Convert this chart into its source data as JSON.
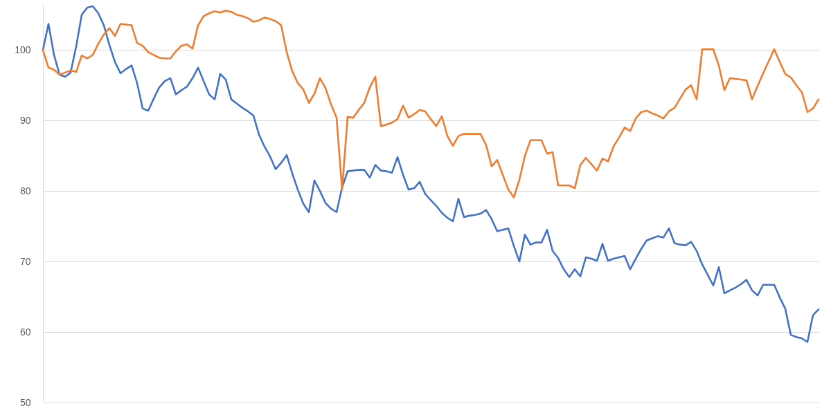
{
  "chart_data": {
    "type": "line",
    "categories": [
      null,
      null,
      null,
      null,
      null,
      null,
      null,
      null,
      null,
      null,
      null,
      null,
      null,
      null,
      null,
      null,
      null,
      null,
      null,
      null,
      null,
      null,
      null,
      null,
      null,
      null,
      null,
      null,
      null,
      null,
      null,
      null,
      null,
      null,
      null,
      null,
      null,
      null,
      null,
      null,
      null,
      null,
      null,
      null,
      null,
      null,
      null,
      null,
      null,
      null,
      null,
      null,
      null,
      null,
      null,
      null,
      null,
      null,
      null,
      null,
      null,
      null,
      null,
      null,
      null,
      null,
      null,
      null,
      null,
      null,
      null,
      null,
      null,
      null,
      null,
      null,
      null,
      null,
      null,
      null,
      null,
      null,
      null,
      null,
      null,
      null,
      null,
      null,
      null,
      null,
      null,
      null,
      null,
      null,
      null,
      null,
      null,
      null,
      null,
      null,
      null,
      null,
      null,
      null,
      null,
      null,
      null,
      null,
      null,
      null,
      null,
      null,
      null,
      null,
      null,
      null,
      null,
      null,
      null,
      null,
      null,
      null,
      null,
      null,
      null,
      null,
      null,
      null,
      null,
      null,
      null,
      null,
      null,
      null,
      null,
      null,
      null,
      null,
      null,
      null,
      null
    ],
    "series": [
      {
        "color": "#4472c4",
        "values": [
          100,
          103.7,
          99.3,
          96.5,
          96.2,
          96.8,
          100.5,
          105.0,
          106.0,
          106.2,
          105.2,
          103.5,
          100.7,
          98.3,
          96.7,
          97.3,
          97.8,
          95.3,
          91.7,
          91.4,
          93.1,
          94.7,
          95.6,
          96.0,
          93.7,
          94.3,
          94.8,
          96,
          97.5,
          95.6,
          93.7,
          93,
          96.6,
          95.8,
          93,
          92.4,
          91.8,
          91.3,
          90.7,
          88,
          86.3,
          84.9,
          83.1,
          84,
          85.1,
          82.5,
          80.2,
          78.2,
          77,
          81.5,
          80,
          78.3,
          77.5,
          77,
          80.5,
          82.8,
          82.9,
          83,
          83,
          81.9,
          83.7,
          82.9,
          82.8,
          82.6,
          84.8,
          82.3,
          80.2,
          80.4,
          81.3,
          79.6,
          78.7,
          77.9,
          76.9,
          76.2,
          75.7,
          78.9,
          76.3,
          76.5,
          76.6,
          76.8,
          77.3,
          76,
          74.3,
          74.5,
          74.7,
          72.2,
          70,
          73.8,
          72.4,
          72.7,
          72.7,
          74.5,
          71.5,
          70.5,
          68.9,
          67.8,
          68.9,
          67.9,
          70.6,
          70.4,
          70.1,
          72.5,
          70.1,
          70.4,
          70.6,
          70.8,
          68.9,
          70.4,
          71.8,
          73,
          73.3,
          73.6,
          73.4,
          74.7,
          72.6,
          72.4,
          72.3,
          72.8,
          71.5,
          69.6,
          68.1,
          66.6,
          69.2,
          65.5,
          65.9,
          66.3,
          66.8,
          67.4,
          65.9,
          65.2,
          66.7,
          66.7,
          66.7,
          64.9,
          63.3,
          59.6,
          59.3,
          59.1,
          58.6,
          62.4,
          63.2
        ]
      },
      {
        "color": "#ed7d31",
        "values": [
          100,
          97.5,
          97.2,
          96.5,
          96.8,
          97.1,
          96.9,
          99.2,
          98.8,
          99.3,
          100.9,
          102.2,
          103.1,
          102.0,
          103.7,
          103.6,
          103.5,
          101,
          100.6,
          99.7,
          99.3,
          98.9,
          98.8,
          98.8,
          99.8,
          100.6,
          100.8,
          100.2,
          103.5,
          104.8,
          105.2,
          105.5,
          105.3,
          105.6,
          105.4,
          105.0,
          104.8,
          104.5,
          104.0,
          104.2,
          104.6,
          104.4,
          104.1,
          103.5,
          99.7,
          97,
          95.3,
          94.4,
          92.5,
          93.8,
          96,
          94.6,
          92.3,
          90.4,
          80.2,
          90.5,
          90.4,
          91.5,
          92.5,
          94.7,
          96.2,
          89.2,
          89.4,
          89.7,
          90.2,
          92.1,
          90.4,
          90.9,
          91.5,
          91.3,
          90.2,
          89.2,
          90.6,
          87.8,
          86.4,
          87.8,
          88.1,
          88.1,
          88.1,
          88.1,
          86.5,
          83.5,
          84.4,
          82.3,
          80.2,
          79.1,
          81.6,
          85,
          87.2,
          87.2,
          87.2,
          85.3,
          85.5,
          80.8,
          80.8,
          80.8,
          80.4,
          83.7,
          84.7,
          83.8,
          82.9,
          84.6,
          84.2,
          86.3,
          87.6,
          89,
          88.5,
          90.3,
          91.2,
          91.4,
          91,
          90.7,
          90.3,
          91.3,
          91.8,
          93.1,
          94.4,
          95,
          93,
          100.1,
          100.1,
          100.1,
          97.8,
          94.3,
          96,
          95.9,
          95.8,
          95.7,
          93,
          94.9,
          96.7,
          98.4,
          100.1,
          98.3,
          96.6,
          96.1,
          95,
          94,
          91.2,
          91.7,
          93
        ]
      }
    ],
    "ylim": [
      50,
      106.5
    ],
    "yticks": [
      50,
      60,
      70,
      80,
      90,
      100
    ],
    "grid": "y",
    "tick_labels": "y",
    "marker": "none",
    "line_style": "solid"
  }
}
